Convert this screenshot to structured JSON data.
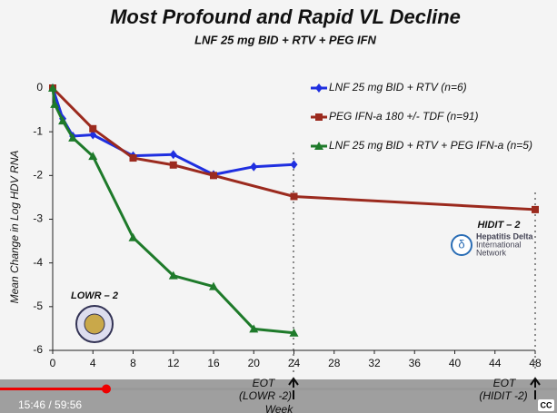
{
  "chart_data": {
    "type": "line",
    "title": "Most Profound and Rapid VL Decline",
    "subtitle": "LNF 25 mg BID + RTV + PEG IFN",
    "y_label": "Mean Change in Log HDV RNA",
    "x_label": "Week",
    "xlim": [
      0,
      48
    ],
    "xticks": [
      0,
      4,
      8,
      12,
      16,
      20,
      24,
      28,
      32,
      36,
      40,
      44,
      48
    ],
    "ylim": [
      -6,
      0
    ],
    "yticks": [
      0,
      -1,
      -2,
      -3,
      -4,
      -5,
      -6
    ],
    "series": [
      {
        "name": "LNF 25 mg BID + RTV (n=6)",
        "color": "#1f2fe0",
        "marker": "diamond",
        "x": [
          0,
          1,
          2,
          4,
          8,
          12,
          16,
          20,
          24
        ],
        "values": [
          0,
          -0.7,
          -1.1,
          -1.07,
          -1.55,
          -1.52,
          -1.98,
          -1.8,
          -1.75
        ]
      },
      {
        "name": "PEG IFN-a 180 +/- TDF (n=91)",
        "color": "#9b2a1e",
        "marker": "square",
        "x": [
          0,
          4,
          8,
          12,
          16,
          24,
          48
        ],
        "values": [
          0,
          -0.93,
          -1.6,
          -1.76,
          -2.0,
          -2.48,
          -2.78
        ]
      },
      {
        "name": "LNF 25 mg BID + RTV + PEG IFN-a (n=5)",
        "color": "#1e7a2a",
        "marker": "triangle",
        "x": [
          0,
          0.2,
          1,
          2,
          4,
          8,
          12,
          16,
          20,
          24
        ],
        "values": [
          0,
          -0.37,
          -0.75,
          -1.14,
          -1.56,
          -3.42,
          -4.29,
          -4.54,
          -5.51,
          -5.6
        ]
      }
    ],
    "annotations": {
      "eot_lowr": [
        "EOT",
        "(LOWR -2)"
      ],
      "eot_hidit": [
        "EOT",
        "(HIDIT -2)"
      ],
      "lowr": "LOWR – 2",
      "hidit": "HIDIT – 2",
      "hdin": [
        "Hepatitis Delta",
        "International",
        "Network"
      ]
    }
  },
  "player": {
    "time": "15:46 / 59:56",
    "cc": "CC"
  }
}
